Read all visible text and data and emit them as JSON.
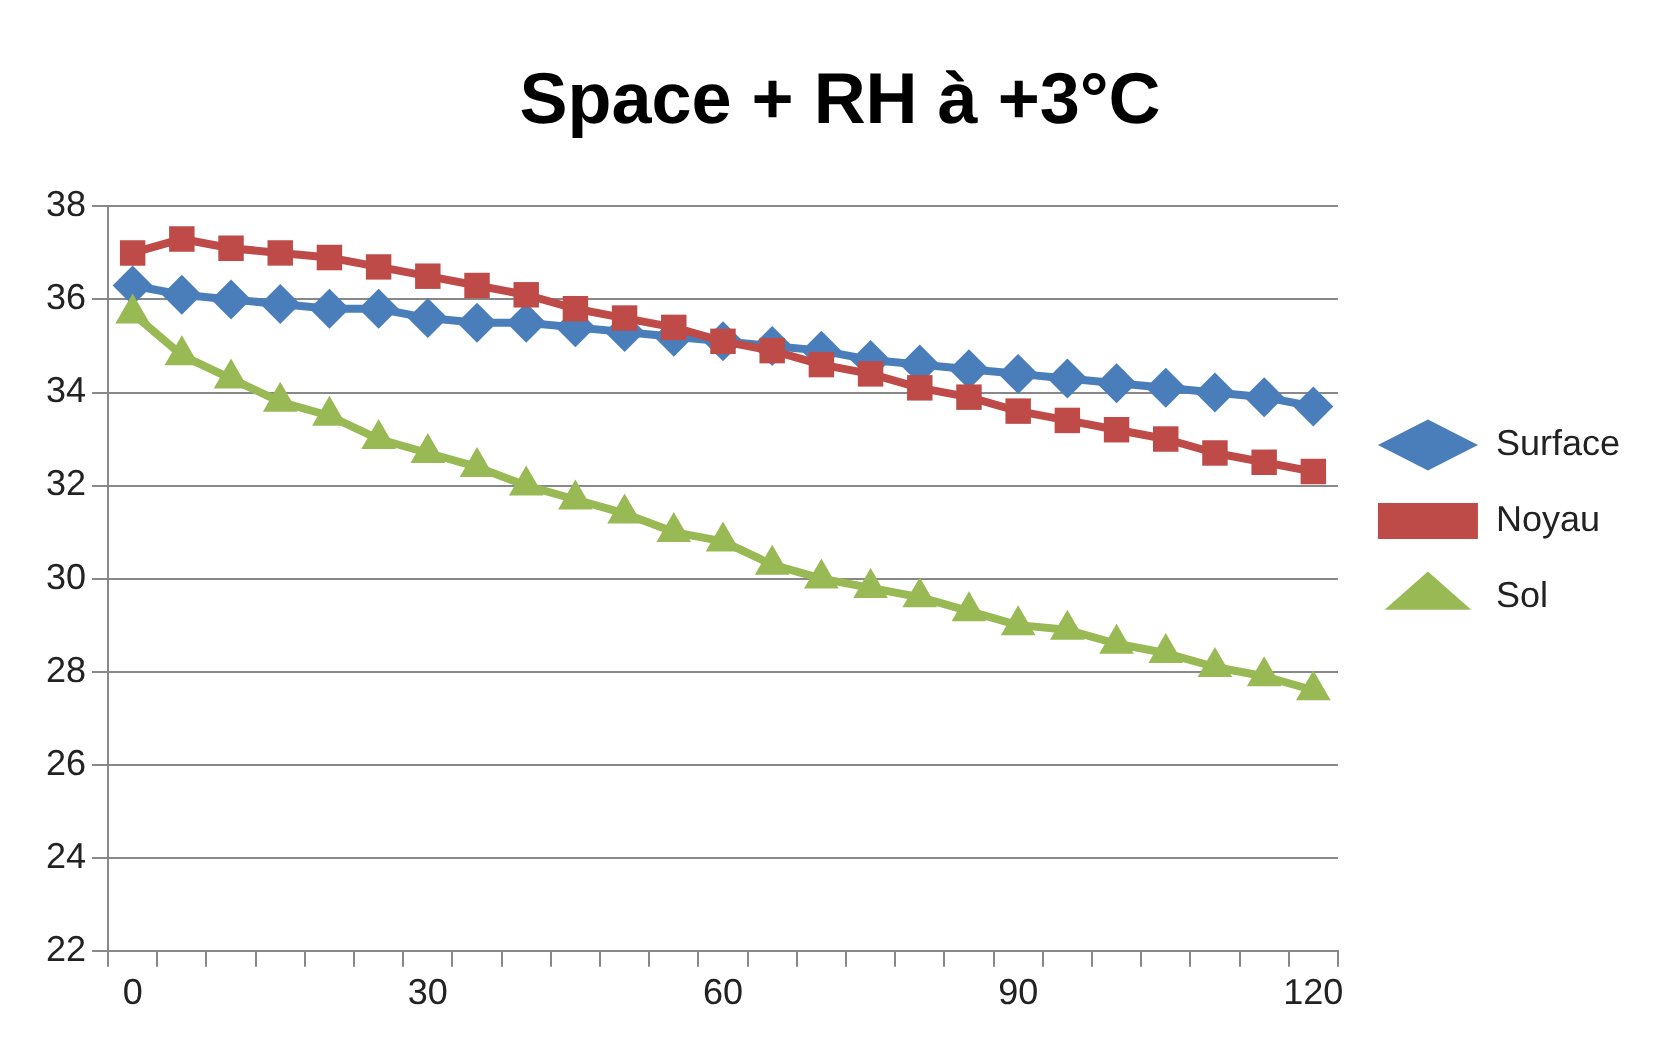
{
  "chart_data": {
    "type": "line",
    "title": "Space + RH à +3°C",
    "categories": [
      "0",
      null,
      null,
      null,
      null,
      null,
      "30",
      null,
      null,
      null,
      null,
      null,
      "60",
      null,
      null,
      null,
      null,
      null,
      "90",
      null,
      null,
      null,
      null,
      null,
      "120"
    ],
    "series": [
      {
        "name": "Surface",
        "color": "#4a7ebb",
        "marker": "diamond",
        "values": [
          36.3,
          36.1,
          36.0,
          35.9,
          35.8,
          35.8,
          35.6,
          35.5,
          35.5,
          35.4,
          35.3,
          35.2,
          35.1,
          35.0,
          34.9,
          34.7,
          34.6,
          34.5,
          34.4,
          34.3,
          34.2,
          34.1,
          34.0,
          33.9,
          33.7
        ]
      },
      {
        "name": "Noyau",
        "color": "#be4b48",
        "marker": "square",
        "values": [
          37.0,
          37.3,
          37.1,
          37.0,
          36.9,
          36.7,
          36.5,
          36.3,
          36.1,
          35.8,
          35.6,
          35.4,
          35.1,
          34.9,
          34.6,
          34.4,
          34.1,
          33.9,
          33.6,
          33.4,
          33.2,
          33.0,
          32.7,
          32.5,
          32.3
        ]
      },
      {
        "name": "Sol",
        "color": "#98b954",
        "marker": "triangle",
        "values": [
          35.7,
          34.8,
          34.3,
          33.8,
          33.5,
          33.0,
          32.7,
          32.4,
          32.0,
          31.7,
          31.4,
          31.0,
          30.8,
          30.3,
          30.0,
          29.8,
          29.6,
          29.3,
          29.0,
          28.9,
          28.6,
          28.4,
          28.1,
          27.9,
          27.6
        ]
      }
    ],
    "ylim": [
      22,
      38
    ],
    "yticks": [
      22,
      24,
      26,
      28,
      30,
      32,
      34,
      36,
      38
    ],
    "grid": "y",
    "legend": "right"
  }
}
